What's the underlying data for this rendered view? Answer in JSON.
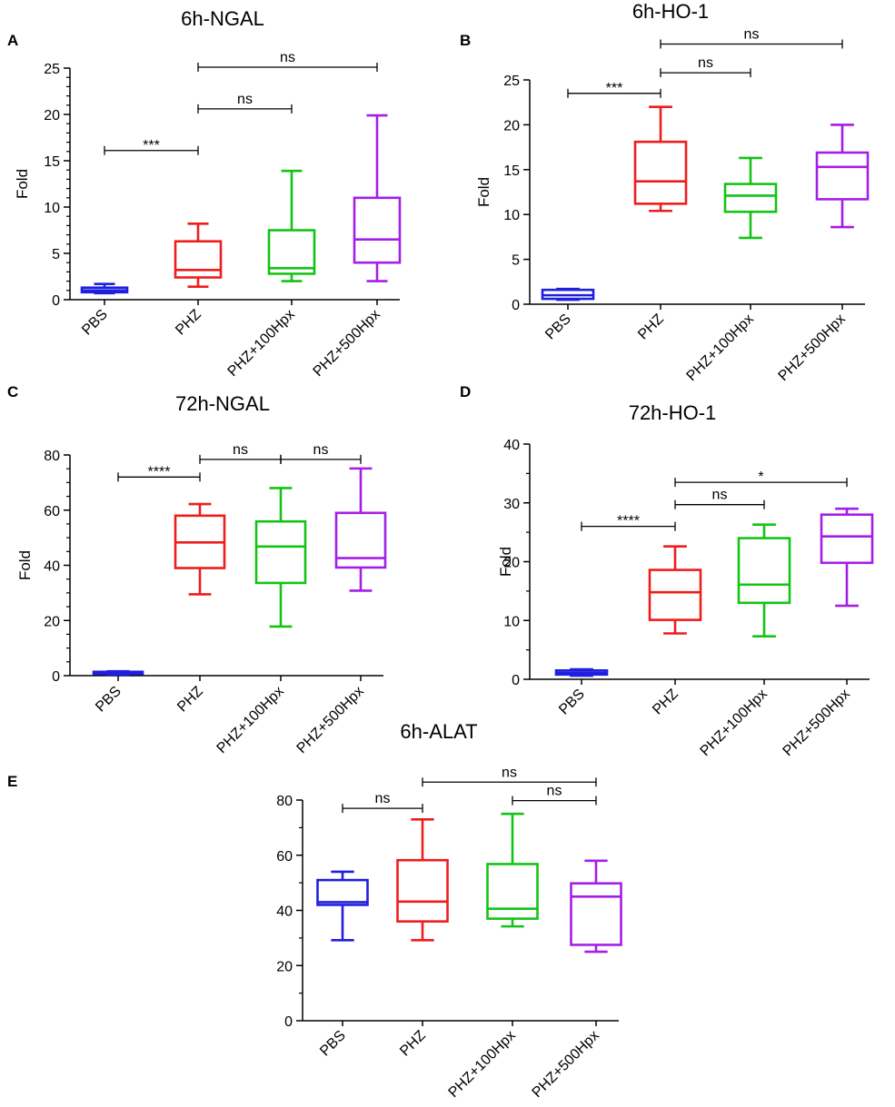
{
  "colors": {
    "PBS": "#1f1fe0",
    "PHZ": "#ee1d1d",
    "PHZ+100Hpx": "#14c414",
    "PHZ+500Hpx": "#a51ee6"
  },
  "chart_data": [
    {
      "panel": "A",
      "title": "6h-NGAL",
      "type": "box",
      "ylabel": "Fold",
      "categories": [
        "PBS",
        "PHZ",
        "PHZ+100Hpx",
        "PHZ+500Hpx"
      ],
      "ylim": [
        0,
        25
      ],
      "yticks": [
        0,
        5,
        10,
        15,
        20,
        25
      ],
      "yticklabels": [
        "0",
        "5",
        "10",
        "15",
        "20",
        "25"
      ],
      "boxes": [
        {
          "min": 0.7,
          "q1": 0.8,
          "median": 1.0,
          "q3": 1.3,
          "max": 1.7
        },
        {
          "min": 1.4,
          "q1": 2.4,
          "median": 3.2,
          "q3": 6.3,
          "max": 8.2
        },
        {
          "min": 2.0,
          "q1": 2.8,
          "median": 3.4,
          "q3": 7.5,
          "max": 13.9
        },
        {
          "min": 2.0,
          "q1": 4.0,
          "median": 6.5,
          "q3": 11.0,
          "max": 19.9
        }
      ],
      "comparisons": [
        {
          "from": 0,
          "to": 1,
          "y": 16.1,
          "label": "***"
        },
        {
          "from": 1,
          "to": 2,
          "y": 20.6,
          "label": "ns"
        },
        {
          "from": 1,
          "to": 3,
          "y": 25.1,
          "label": "ns"
        }
      ]
    },
    {
      "panel": "B",
      "title": "6h-HO-1",
      "type": "box",
      "ylabel": "Fold",
      "categories": [
        "PBS",
        "PHZ",
        "PHZ+100Hpx",
        "PHZ+500Hpx"
      ],
      "ylim": [
        0,
        25
      ],
      "yticks": [
        0,
        5,
        10,
        15,
        20,
        25
      ],
      "yticklabels": [
        "0",
        "5",
        "10",
        "15",
        "20",
        "25"
      ],
      "boxes": [
        {
          "min": 0.5,
          "q1": 0.6,
          "median": 1.0,
          "q3": 1.6,
          "max": 1.7
        },
        {
          "min": 10.4,
          "q1": 11.2,
          "median": 13.7,
          "q3": 18.1,
          "max": 22.0
        },
        {
          "min": 7.4,
          "q1": 10.3,
          "median": 12.1,
          "q3": 13.4,
          "max": 16.3
        },
        {
          "min": 8.6,
          "q1": 11.7,
          "median": 15.3,
          "q3": 16.9,
          "max": 20.0
        }
      ],
      "comparisons": [
        {
          "from": 0,
          "to": 1,
          "y": 23.5,
          "label": "***"
        },
        {
          "from": 1,
          "to": 2,
          "y": 25.8,
          "label": "ns"
        },
        {
          "from": 1,
          "to": 3,
          "y": 29.0,
          "label": "ns"
        }
      ]
    },
    {
      "panel": "C",
      "title": "72h-NGAL",
      "type": "box",
      "ylabel": "Fold",
      "categories": [
        "PBS",
        "PHZ",
        "PHZ+100Hpx",
        "PHZ+500Hpx"
      ],
      "ylim": [
        0,
        80
      ],
      "yticks": [
        0,
        20,
        40,
        60,
        80
      ],
      "yticklabels": [
        "0",
        "20",
        "40",
        "60",
        "80"
      ],
      "boxes": [
        {
          "min": 0.4,
          "q1": 0.6,
          "median": 1.0,
          "q3": 1.4,
          "max": 1.6
        },
        {
          "min": 29.5,
          "q1": 39.0,
          "median": 48.3,
          "q3": 58.0,
          "max": 62.2
        },
        {
          "min": 17.8,
          "q1": 33.6,
          "median": 46.8,
          "q3": 55.9,
          "max": 68.0
        },
        {
          "min": 30.8,
          "q1": 39.2,
          "median": 42.6,
          "q3": 59.0,
          "max": 75.1
        }
      ],
      "comparisons": [
        {
          "from": 0,
          "to": 1,
          "y": 72.0,
          "label": "****"
        },
        {
          "from": 1,
          "to": 2,
          "y": 78.4,
          "label": "ns"
        },
        {
          "from": 2,
          "to": 3,
          "y": 78.4,
          "label": "ns"
        }
      ]
    },
    {
      "panel": "D",
      "title": "72h-HO-1",
      "type": "box",
      "ylabel": "Fold",
      "categories": [
        "PBS",
        "PHZ",
        "PHZ+100Hpx",
        "PHZ+500Hpx"
      ],
      "ylim": [
        0,
        40
      ],
      "yticks": [
        0,
        10,
        20,
        30,
        40
      ],
      "yticklabels": [
        "0",
        "10",
        "20",
        "30",
        "40"
      ],
      "boxes": [
        {
          "min": 0.6,
          "q1": 0.8,
          "median": 1.1,
          "q3": 1.5,
          "max": 1.7
        },
        {
          "min": 7.8,
          "q1": 10.1,
          "median": 14.8,
          "q3": 18.6,
          "max": 22.6
        },
        {
          "min": 7.3,
          "q1": 13.0,
          "median": 16.1,
          "q3": 24.0,
          "max": 26.3
        },
        {
          "min": 12.5,
          "q1": 19.8,
          "median": 24.3,
          "q3": 28.0,
          "max": 29.0
        }
      ],
      "comparisons": [
        {
          "from": 0,
          "to": 1,
          "y": 26.0,
          "label": "****"
        },
        {
          "from": 1,
          "to": 2,
          "y": 29.7,
          "label": "ns"
        },
        {
          "from": 1,
          "to": 3,
          "y": 33.5,
          "label": "*"
        }
      ]
    },
    {
      "panel": "E",
      "title": "6h-ALAT",
      "type": "box",
      "ylabel": "",
      "categories": [
        "PBS",
        "PHZ",
        "PHZ+100Hpx",
        "PHZ+500Hpx"
      ],
      "ylim": [
        0,
        80
      ],
      "yticks": [
        0,
        20,
        40,
        60,
        80
      ],
      "yticklabels": [
        "0",
        "20",
        "40",
        "60",
        "80"
      ],
      "boxes": [
        {
          "min": 29.2,
          "q1": 42.0,
          "median": 43.0,
          "q3": 51.0,
          "max": 54.0
        },
        {
          "min": 29.2,
          "q1": 36.0,
          "median": 43.2,
          "q3": 58.2,
          "max": 73.0
        },
        {
          "min": 34.2,
          "q1": 37.0,
          "median": 40.6,
          "q3": 56.8,
          "max": 75.0
        },
        {
          "min": 25.0,
          "q1": 27.5,
          "median": 45.0,
          "q3": 49.8,
          "max": 58.0
        }
      ],
      "comparisons": [
        {
          "from": 0,
          "to": 1,
          "y": 77.0,
          "label": "ns"
        },
        {
          "from": 2,
          "to": 3,
          "y": 79.8,
          "label": "ns"
        },
        {
          "from": 1,
          "to": 3,
          "y": 86.5,
          "label": "ns"
        }
      ]
    }
  ]
}
